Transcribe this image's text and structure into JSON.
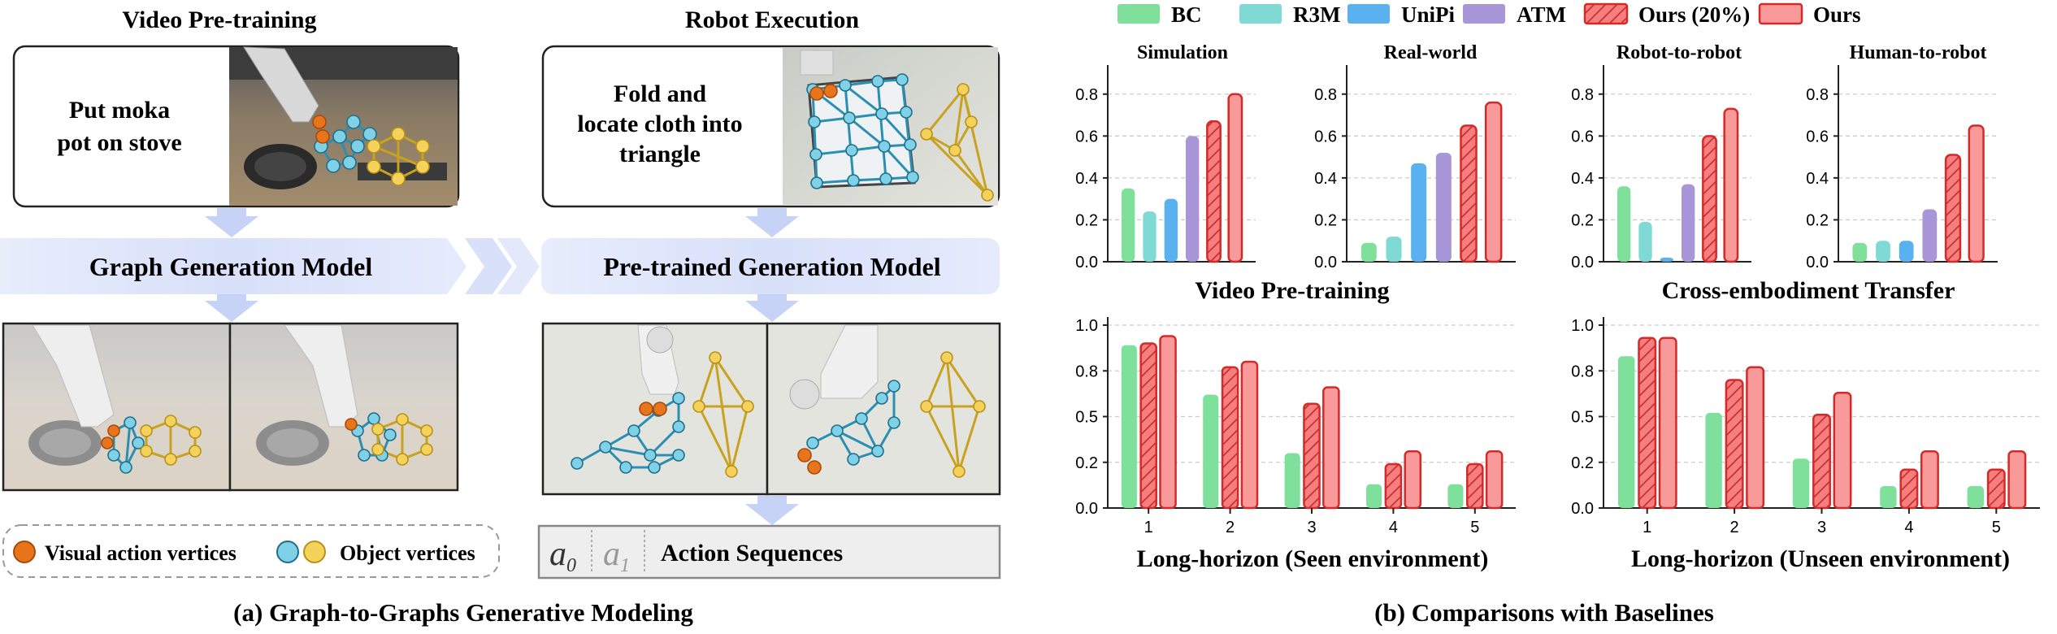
{
  "left": {
    "video_pretraining_title": "Video Pre-training",
    "robot_execution_title": "Robot Execution",
    "instruction_1": [
      "Put  moka",
      "pot on stove"
    ],
    "instruction_2": [
      "Fold and",
      "locate cloth  into",
      "triangle"
    ],
    "graph_generation_model": "Graph Generation Model",
    "pretrained_generation_model": "Pre-trained Generation Model",
    "legend_visual_action": "Visual action vertices",
    "legend_object": "Object vertices",
    "action_a0_symbol": "a",
    "action_a0_sub": "0",
    "action_a1_symbol": "a",
    "action_a1_sub": "1",
    "action_sequences": "Action Sequences",
    "caption": "(a) Graph-to-Graphs Generative Modeling",
    "colors": {
      "action_vertex": "#e8741c",
      "object_vertex_blue": "#4cb3d4",
      "object_vertex_yellow": "#e8c23a",
      "banner": "#dfe6fb"
    }
  },
  "legend": [
    {
      "name": "BC",
      "color": "#7ee09a",
      "hatch": false
    },
    {
      "name": "R3M",
      "color": "#7fd9d4",
      "hatch": false
    },
    {
      "name": "UniPi",
      "color": "#5ab1ef",
      "hatch": false
    },
    {
      "name": "ATM",
      "color": "#a896d8",
      "hatch": false
    },
    {
      "name": "Ours (20%)",
      "color": "#f57f7f",
      "hatch": true
    },
    {
      "name": "Ours",
      "color": "#f89a9a",
      "hatch": false
    }
  ],
  "group_titles": {
    "top_left": "Video Pre-training",
    "top_right": "Cross-embodiment Transfer"
  },
  "caption_b": "(b) Comparisons with Baselines",
  "chart_data": [
    {
      "type": "bar",
      "title": "Simulation",
      "ylim": [
        0,
        0.9
      ],
      "yticks": [
        "0.0",
        "0.2",
        "0.4",
        "0.6",
        "0.8"
      ],
      "series": [
        {
          "name": "BC",
          "values": [
            0.35
          ]
        },
        {
          "name": "R3M",
          "values": [
            0.24
          ]
        },
        {
          "name": "UniPi",
          "values": [
            0.3
          ]
        },
        {
          "name": "ATM",
          "values": [
            0.6
          ]
        },
        {
          "name": "Ours (20%)",
          "values": [
            0.67
          ]
        },
        {
          "name": "Ours",
          "values": [
            0.8
          ]
        }
      ]
    },
    {
      "type": "bar",
      "title": "Real-world",
      "ylim": [
        0,
        0.9
      ],
      "yticks": [
        "0.0",
        "0.2",
        "0.4",
        "0.6",
        "0.8"
      ],
      "series": [
        {
          "name": "BC",
          "values": [
            0.09
          ]
        },
        {
          "name": "R3M",
          "values": [
            0.12
          ]
        },
        {
          "name": "UniPi",
          "values": [
            0.47
          ]
        },
        {
          "name": "ATM",
          "values": [
            0.52
          ]
        },
        {
          "name": "Ours (20%)",
          "values": [
            0.65
          ]
        },
        {
          "name": "Ours",
          "values": [
            0.76
          ]
        }
      ]
    },
    {
      "type": "bar",
      "title": "Robot-to-robot",
      "ylim": [
        0,
        0.9
      ],
      "yticks": [
        "0.0",
        "0.2",
        "0.4",
        "0.6",
        "0.8"
      ],
      "series": [
        {
          "name": "BC",
          "values": [
            0.36
          ]
        },
        {
          "name": "R3M",
          "values": [
            0.19
          ]
        },
        {
          "name": "UniPi",
          "values": [
            0.02
          ]
        },
        {
          "name": "ATM",
          "values": [
            0.37
          ]
        },
        {
          "name": "Ours (20%)",
          "values": [
            0.6
          ]
        },
        {
          "name": "Ours",
          "values": [
            0.73
          ]
        }
      ]
    },
    {
      "type": "bar",
      "title": "Human-to-robot",
      "ylim": [
        0,
        0.9
      ],
      "yticks": [
        "0.0",
        "0.2",
        "0.4",
        "0.6",
        "0.8"
      ],
      "series": [
        {
          "name": "BC",
          "values": [
            0.09
          ]
        },
        {
          "name": "R3M",
          "values": [
            0.1
          ]
        },
        {
          "name": "UniPi",
          "values": [
            0.1
          ]
        },
        {
          "name": "ATM",
          "values": [
            0.25
          ]
        },
        {
          "name": "Ours (20%)",
          "values": [
            0.51
          ]
        },
        {
          "name": "Ours",
          "values": [
            0.65
          ]
        }
      ]
    },
    {
      "type": "bar",
      "title": "Long-horizon (Seen environment)",
      "categories": [
        "1",
        "2",
        "3",
        "4",
        "5"
      ],
      "ylim": [
        0,
        1.0
      ],
      "yticks": [
        "0.0",
        "0.2",
        "0.5",
        "0.8",
        "1.0"
      ],
      "series": [
        {
          "name": "BC",
          "values": [
            0.89,
            0.62,
            0.3,
            0.13,
            0.13
          ]
        },
        {
          "name": "Ours (20%)",
          "values": [
            0.9,
            0.77,
            0.57,
            0.24,
            0.24
          ]
        },
        {
          "name": "Ours",
          "values": [
            0.94,
            0.8,
            0.66,
            0.31,
            0.31
          ]
        }
      ]
    },
    {
      "type": "bar",
      "title": "Long-horizon (Unseen environment)",
      "categories": [
        "1",
        "2",
        "3",
        "4",
        "5"
      ],
      "ylim": [
        0,
        1.0
      ],
      "yticks": [
        "0.0",
        "0.2",
        "0.5",
        "0.8",
        "1.0"
      ],
      "series": [
        {
          "name": "BC",
          "values": [
            0.83,
            0.52,
            0.27,
            0.12,
            0.12
          ]
        },
        {
          "name": "Ours (20%)",
          "values": [
            0.93,
            0.7,
            0.51,
            0.21,
            0.21
          ]
        },
        {
          "name": "Ours",
          "values": [
            0.93,
            0.77,
            0.63,
            0.31,
            0.31
          ]
        }
      ]
    }
  ]
}
